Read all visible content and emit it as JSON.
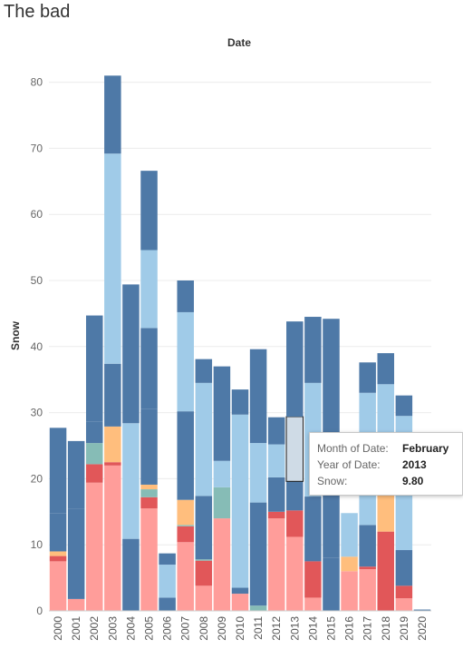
{
  "header": {
    "title": "The bad"
  },
  "chart_data": {
    "type": "bar",
    "stacked": true,
    "title": "Date",
    "xlabel": "",
    "ylabel": "Snow",
    "ylim": [
      0,
      85
    ],
    "yticks": [
      0,
      10,
      20,
      30,
      40,
      50,
      60,
      70,
      80
    ],
    "grid": true,
    "legend": "none",
    "categories": [
      "2000",
      "2001",
      "2002",
      "2003",
      "2004",
      "2005",
      "2006",
      "2007",
      "2008",
      "2009",
      "2010",
      "2011",
      "2012",
      "2013",
      "2014",
      "2015",
      "2016",
      "2017",
      "2018",
      "2019",
      "2020"
    ],
    "series": [
      {
        "color": "#ff9d9a",
        "values": [
          7.5,
          1.8,
          19.4,
          22.0,
          0.0,
          15.5,
          0.0,
          10.4,
          3.8,
          14.0,
          2.6,
          0.0,
          14.0,
          11.2,
          2.0,
          0.0,
          6.0,
          6.3,
          0.0,
          1.9,
          0.0
        ]
      },
      {
        "color": "#e15759",
        "values": [
          0.8,
          0.0,
          2.8,
          0.5,
          0.0,
          1.7,
          0.0,
          2.4,
          3.8,
          0.0,
          0.0,
          0.0,
          1.0,
          4.0,
          5.5,
          0.0,
          0.0,
          0.4,
          12.0,
          1.9,
          0.0
        ]
      },
      {
        "color": "#86bcb6",
        "values": [
          0.0,
          0.0,
          3.2,
          0.0,
          0.0,
          1.2,
          0.0,
          0.2,
          0.2,
          4.7,
          0.0,
          0.8,
          0.0,
          0.0,
          0.0,
          0.0,
          0.0,
          0.0,
          0.0,
          0.0,
          0.0
        ]
      },
      {
        "color": "#ffbe7d",
        "values": [
          0.7,
          0.0,
          0.0,
          5.4,
          0.0,
          0.7,
          0.0,
          3.8,
          0.0,
          0.0,
          0.0,
          0.0,
          0.0,
          0.0,
          0.0,
          0.0,
          2.2,
          0.0,
          5.5,
          0.0,
          0.0
        ]
      },
      {
        "color": "#4e79a7",
        "values": [
          5.8,
          13.6,
          3.2,
          9.5,
          10.9,
          11.5,
          2.0,
          13.4,
          9.6,
          0.0,
          0.9,
          15.6,
          5.2,
          4.4,
          9.8,
          8.0,
          0.0,
          6.3,
          0.0,
          5.4,
          0.2
        ]
      },
      {
        "color": "#a0cbe8",
        "values": [
          0.0,
          0.0,
          0.0,
          0.0,
          17.5,
          0.0,
          5.0,
          0.0,
          0.0,
          4.0,
          26.2,
          9.0,
          5.0,
          0.0,
          17.2,
          0.0,
          6.6,
          20.0,
          16.8,
          20.3,
          0.0
        ]
      },
      {
        "color": "#4e79a7",
        "values": [
          12.9,
          10.3,
          16.1,
          0.0,
          21.0,
          12.2,
          1.7,
          0.0,
          0.0,
          0.0,
          0.0,
          0.0,
          0.0,
          0.0,
          0.0,
          0.0,
          0.0,
          0.0,
          0.0,
          0.0,
          0.0
        ]
      },
      {
        "color": "#a0cbe8",
        "values": [
          0.0,
          0.0,
          0.0,
          0.0,
          0.0,
          11.8,
          0.0,
          0.0,
          0.0,
          0.0,
          0.0,
          0.0,
          0.0,
          0.0,
          0.0,
          0.0,
          0.0,
          0.0,
          0.0,
          0.0,
          0.0
        ]
      },
      {
        "color": "#4e79a7",
        "values": [
          0.0,
          0.0,
          0.0,
          0.0,
          0.0,
          0.0,
          0.0,
          0.0,
          0.0,
          0.0,
          0.0,
          0.0,
          0.0,
          0.0,
          0.0,
          0.0,
          0.0,
          0.0,
          0.0,
          0.0,
          0.0
        ]
      },
      {
        "color": "#a0cbe8",
        "values": [
          0.0,
          0.0,
          0.0,
          31.8,
          0.0,
          0.0,
          0.0,
          15.0,
          17.1,
          0.0,
          0.0,
          0.0,
          0.0,
          0.0,
          0.0,
          0.0,
          0.0,
          0.0,
          0.0,
          0.0,
          0.0
        ]
      },
      {
        "color": "#4e79a7",
        "values": [
          0.0,
          0.0,
          0.0,
          11.8,
          0.0,
          12.0,
          0.0,
          4.8,
          3.6,
          14.3,
          3.8,
          14.2,
          4.1,
          9.8,
          10.0,
          36.2,
          0.0,
          4.6,
          4.7,
          3.1,
          0.0
        ]
      },
      {
        "color": "#4e79a7",
        "values": [
          0.0,
          0.0,
          0.0,
          0.0,
          0.0,
          0.0,
          0.0,
          0.0,
          0.0,
          0.0,
          0.0,
          0.0,
          0.0,
          14.4,
          0.0,
          0.0,
          0.0,
          0.0,
          0.0,
          0.0,
          0.0
        ]
      }
    ],
    "selected_segment": {
      "category": "2013",
      "series_index": 10
    },
    "tooltip": {
      "rows": [
        {
          "label": "Month of Date:",
          "value": "February"
        },
        {
          "label": "Year of Date:",
          "value": "2013"
        },
        {
          "label": "Snow:",
          "value": "9.80"
        }
      ]
    }
  }
}
